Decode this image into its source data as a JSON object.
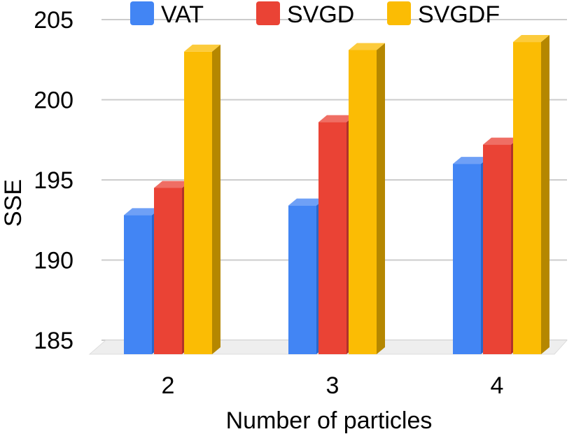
{
  "chart_data": {
    "type": "bar",
    "title": "",
    "xlabel": "Number of particles",
    "ylabel": "SSE",
    "categories": [
      "2",
      "3",
      "4"
    ],
    "series": [
      {
        "name": "VAT",
        "values": [
          192.8,
          193.4,
          196.0
        ],
        "color": "#4285F4",
        "side_color": "#2A66C9",
        "top_color": "#6FA0F6"
      },
      {
        "name": "SVGD",
        "values": [
          194.5,
          198.6,
          197.2
        ],
        "color": "#EA4335",
        "side_color": "#B0322A",
        "top_color": "#EF6E64"
      },
      {
        "name": "SVGDF",
        "values": [
          203.0,
          203.1,
          203.6
        ],
        "color": "#FBBC04",
        "side_color": "#B58700",
        "top_color": "#FCCB3C"
      }
    ],
    "ylim": [
      185,
      205
    ],
    "yticks": [
      185,
      190,
      195,
      200,
      205
    ],
    "grid": true,
    "legend": "top"
  }
}
